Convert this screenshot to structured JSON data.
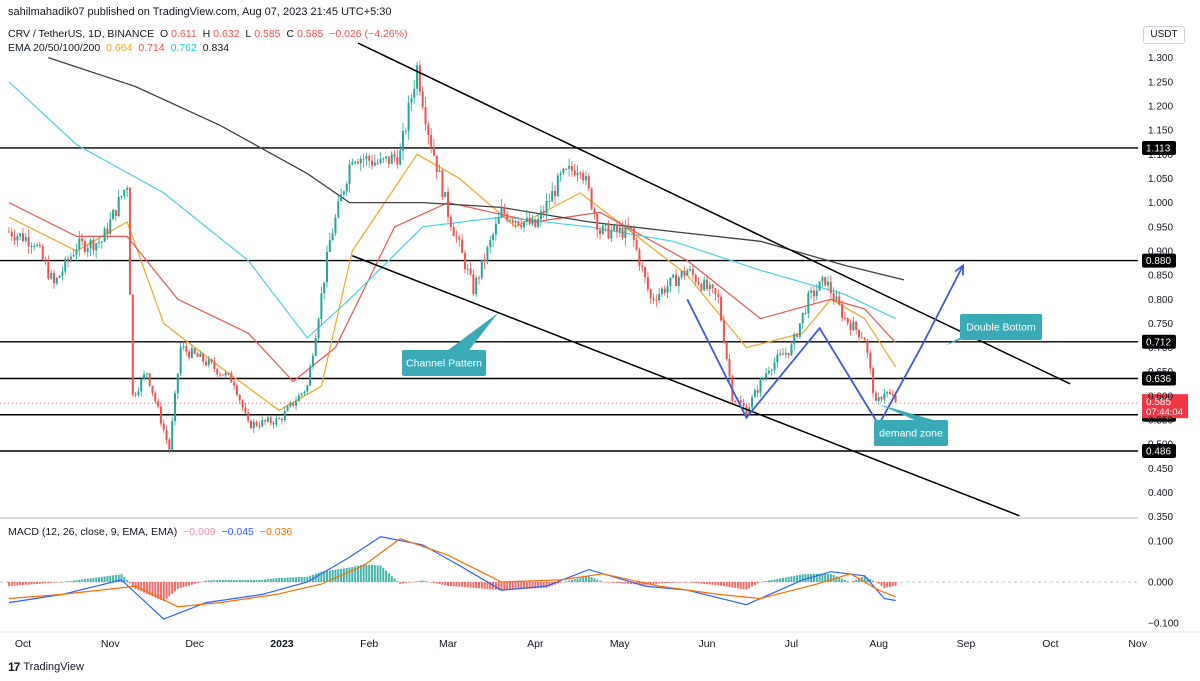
{
  "header": {
    "published": "sahilmahadik07 published on TradingView.com, Aug 07, 2023 21:45 UTC+5:30"
  },
  "symbol_legend": {
    "symbol": "CRV / TetherUS, 1D, BINANCE",
    "o_label": "O",
    "o_value": "0.611",
    "h_label": "H",
    "h_value": "0.632",
    "l_label": "L",
    "l_value": "0.585",
    "c_label": "C",
    "c_value": "0.585",
    "change": "−0.026 (−4.26%)"
  },
  "ema_legend": {
    "label": "EMA 20/50/100/200",
    "ema20": "0.664",
    "ema50": "0.714",
    "ema100": "0.762",
    "ema200": "0.834"
  },
  "macd_legend": {
    "label": "MACD (12, 26, close, 9, EMA, EMA)",
    "hist": "−0.009",
    "macd": "−0.045",
    "signal": "−0.036"
  },
  "currency": "USDT",
  "footer": {
    "brand": "TradingView"
  },
  "colors": {
    "up": "#26a69a",
    "down": "#ef5350",
    "ema20": "#f5a623",
    "ema50": "#ef5350",
    "ema100": "#4dd0e1",
    "ema200": "#424242",
    "macd": "#2962ff",
    "signal": "#ff6d00",
    "annotation_bg": "#3aabb6",
    "pattern": "#3b5bdb",
    "price_tag": "#f23645"
  },
  "chart_data": {
    "type": "candlestick",
    "symbol": "CRV / TetherUS",
    "timeframe": "1D",
    "x_ticks": [
      "Oct",
      "Nov",
      "Dec",
      "2023",
      "Feb",
      "Mar",
      "Apr",
      "May",
      "Jun",
      "Jul",
      "Aug",
      "Sep",
      "Oct",
      "Nov"
    ],
    "y_ticks": [
      "1.300",
      "1.250",
      "1.200",
      "1.150",
      "1.100",
      "1.050",
      "1.000",
      "0.950",
      "0.900",
      "0.850",
      "0.800",
      "0.750",
      "0.700",
      "0.650",
      "0.600",
      "0.550",
      "0.500",
      "0.450",
      "0.400",
      "0.350"
    ],
    "ylim": [
      0.35,
      1.31
    ],
    "horizontal_levels": [
      "1.113",
      "0.880",
      "0.712",
      "0.636",
      "0.561",
      "0.486"
    ],
    "current_price": "0.585",
    "countdown": "07:44:04",
    "price_anchors": [
      [
        "2022-09-26",
        0.94
      ],
      [
        "2022-10-05",
        0.92
      ],
      [
        "2022-10-12",
        0.83
      ],
      [
        "2022-10-20",
        0.91
      ],
      [
        "2022-10-29",
        0.92
      ],
      [
        "2022-11-07",
        1.04
      ],
      [
        "2022-11-09",
        0.6
      ],
      [
        "2022-11-14",
        0.65
      ],
      [
        "2022-11-22",
        0.49
      ],
      [
        "2022-11-26",
        0.7
      ],
      [
        "2022-12-05",
        0.67
      ],
      [
        "2022-12-15",
        0.63
      ],
      [
        "2022-12-20",
        0.54
      ],
      [
        "2022-12-31",
        0.55
      ],
      [
        "2023-01-10",
        0.62
      ],
      [
        "2023-01-18",
        0.92
      ],
      [
        "2023-01-26",
        1.1
      ],
      [
        "2023-02-05",
        1.08
      ],
      [
        "2023-02-12",
        1.1
      ],
      [
        "2023-02-18",
        1.28
      ],
      [
        "2023-02-22",
        1.15
      ],
      [
        "2023-03-01",
        0.98
      ],
      [
        "2023-03-10",
        0.82
      ],
      [
        "2023-03-20",
        0.98
      ],
      [
        "2023-04-01",
        0.95
      ],
      [
        "2023-04-10",
        1.05
      ],
      [
        "2023-04-17",
        1.08
      ],
      [
        "2023-04-24",
        0.94
      ],
      [
        "2023-05-05",
        0.94
      ],
      [
        "2023-05-12",
        0.8
      ],
      [
        "2023-05-25",
        0.86
      ],
      [
        "2023-06-05",
        0.8
      ],
      [
        "2023-06-10",
        0.6
      ],
      [
        "2023-06-15",
        0.57
      ],
      [
        "2023-06-23",
        0.66
      ],
      [
        "2023-07-01",
        0.7
      ],
      [
        "2023-07-07",
        0.8
      ],
      [
        "2023-07-13",
        0.84
      ],
      [
        "2023-07-20",
        0.76
      ],
      [
        "2023-07-27",
        0.72
      ],
      [
        "2023-07-31",
        0.58
      ],
      [
        "2023-08-03",
        0.61
      ],
      [
        "2023-08-07",
        0.59
      ]
    ],
    "ema_lines": {
      "ema20": [
        [
          "2022-09-26",
          0.97
        ],
        [
          "2022-10-20",
          0.9
        ],
        [
          "2022-11-07",
          0.96
        ],
        [
          "2022-11-20",
          0.75
        ],
        [
          "2022-12-10",
          0.66
        ],
        [
          "2022-12-31",
          0.57
        ],
        [
          "2023-01-15",
          0.62
        ],
        [
          "2023-01-26",
          0.9
        ],
        [
          "2023-02-18",
          1.1
        ],
        [
          "2023-03-05",
          1.05
        ],
        [
          "2023-03-25",
          0.95
        ],
        [
          "2023-04-17",
          1.02
        ],
        [
          "2023-05-05",
          0.94
        ],
        [
          "2023-05-25",
          0.85
        ],
        [
          "2023-06-15",
          0.7
        ],
        [
          "2023-07-05",
          0.73
        ],
        [
          "2023-07-15",
          0.8
        ],
        [
          "2023-07-27",
          0.76
        ],
        [
          "2023-08-07",
          0.66
        ]
      ],
      "ema50": [
        [
          "2022-09-26",
          1.0
        ],
        [
          "2022-10-20",
          0.93
        ],
        [
          "2022-11-07",
          0.93
        ],
        [
          "2022-11-25",
          0.8
        ],
        [
          "2022-12-20",
          0.73
        ],
        [
          "2023-01-05",
          0.63
        ],
        [
          "2023-01-20",
          0.7
        ],
        [
          "2023-02-10",
          0.95
        ],
        [
          "2023-03-01",
          1.0
        ],
        [
          "2023-04-01",
          0.96
        ],
        [
          "2023-04-24",
          0.98
        ],
        [
          "2023-05-25",
          0.88
        ],
        [
          "2023-06-20",
          0.76
        ],
        [
          "2023-07-15",
          0.8
        ],
        [
          "2023-07-27",
          0.78
        ],
        [
          "2023-08-07",
          0.71
        ]
      ],
      "ema100": [
        [
          "2022-09-26",
          1.25
        ],
        [
          "2022-10-20",
          1.12
        ],
        [
          "2022-11-20",
          1.02
        ],
        [
          "2022-12-20",
          0.88
        ],
        [
          "2023-01-10",
          0.72
        ],
        [
          "2023-01-25",
          0.8
        ],
        [
          "2023-02-20",
          0.95
        ],
        [
          "2023-03-20",
          0.97
        ],
        [
          "2023-04-20",
          0.95
        ],
        [
          "2023-05-20",
          0.92
        ],
        [
          "2023-06-20",
          0.86
        ],
        [
          "2023-07-20",
          0.81
        ],
        [
          "2023-08-07",
          0.76
        ]
      ],
      "ema200": [
        [
          "2022-10-10",
          1.3
        ],
        [
          "2022-11-10",
          1.24
        ],
        [
          "2022-12-10",
          1.16
        ],
        [
          "2023-01-10",
          1.06
        ],
        [
          "2023-01-25",
          1.0
        ],
        [
          "2023-02-20",
          1.0
        ],
        [
          "2023-03-20",
          0.99
        ],
        [
          "2023-04-20",
          0.96
        ],
        [
          "2023-05-20",
          0.94
        ],
        [
          "2023-06-20",
          0.92
        ],
        [
          "2023-07-20",
          0.87
        ],
        [
          "2023-08-10",
          0.84
        ]
      ]
    },
    "trendlines": [
      {
        "name": "channel-upper",
        "from": [
          "2023-01-28",
          1.33
        ],
        "to": [
          "2023-10-08",
          0.625
        ]
      },
      {
        "name": "channel-lower",
        "from": [
          "2023-01-26",
          0.89
        ],
        "to": [
          "2023-09-20",
          0.352
        ]
      }
    ],
    "double_bottom_path": [
      [
        "2023-05-25",
        0.8
      ],
      [
        "2023-06-15",
        0.555
      ],
      [
        "2023-07-11",
        0.74
      ],
      [
        "2023-08-01",
        0.54
      ],
      [
        "2023-08-16",
        0.7
      ],
      [
        "2023-08-31",
        0.87
      ]
    ],
    "annotations": {
      "channel": "Channel Pattern",
      "double_bottom": "Double Bottom",
      "demand": "demand zone"
    },
    "macd_panel": {
      "y_ticks": [
        "0.100",
        "0.000",
        "−0.100"
      ],
      "ylim": [
        -0.12,
        0.13
      ],
      "macd_line": [
        [
          "2022-09-26",
          -0.05
        ],
        [
          "2022-10-15",
          -0.03
        ],
        [
          "2022-11-05",
          0.005
        ],
        [
          "2022-11-20",
          -0.09
        ],
        [
          "2022-12-05",
          -0.05
        ],
        [
          "2022-12-25",
          -0.03
        ],
        [
          "2023-01-10",
          0.0
        ],
        [
          "2023-01-25",
          0.06
        ],
        [
          "2023-02-05",
          0.11
        ],
        [
          "2023-02-20",
          0.09
        ],
        [
          "2023-03-05",
          0.04
        ],
        [
          "2023-03-20",
          -0.02
        ],
        [
          "2023-04-05",
          -0.01
        ],
        [
          "2023-04-20",
          0.03
        ],
        [
          "2023-05-10",
          -0.01
        ],
        [
          "2023-05-25",
          -0.02
        ],
        [
          "2023-06-15",
          -0.055
        ],
        [
          "2023-07-05",
          0.005
        ],
        [
          "2023-07-15",
          0.025
        ],
        [
          "2023-07-27",
          0.015
        ],
        [
          "2023-08-03",
          -0.04
        ],
        [
          "2023-08-07",
          -0.045
        ]
      ],
      "signal_line": [
        [
          "2022-09-26",
          -0.04
        ],
        [
          "2022-10-15",
          -0.03
        ],
        [
          "2022-11-10",
          -0.01
        ],
        [
          "2022-11-25",
          -0.06
        ],
        [
          "2022-12-10",
          -0.05
        ],
        [
          "2022-12-30",
          -0.03
        ],
        [
          "2023-01-15",
          -0.005
        ],
        [
          "2023-01-30",
          0.04
        ],
        [
          "2023-02-12",
          0.105
        ],
        [
          "2023-03-01",
          0.065
        ],
        [
          "2023-03-20",
          0.0
        ],
        [
          "2023-04-10",
          0.005
        ],
        [
          "2023-04-25",
          0.02
        ],
        [
          "2023-05-15",
          -0.01
        ],
        [
          "2023-06-05",
          -0.03
        ],
        [
          "2023-06-20",
          -0.04
        ],
        [
          "2023-07-10",
          -0.005
        ],
        [
          "2023-07-22",
          0.02
        ],
        [
          "2023-08-01",
          -0.02
        ],
        [
          "2023-08-07",
          -0.036
        ]
      ]
    }
  }
}
